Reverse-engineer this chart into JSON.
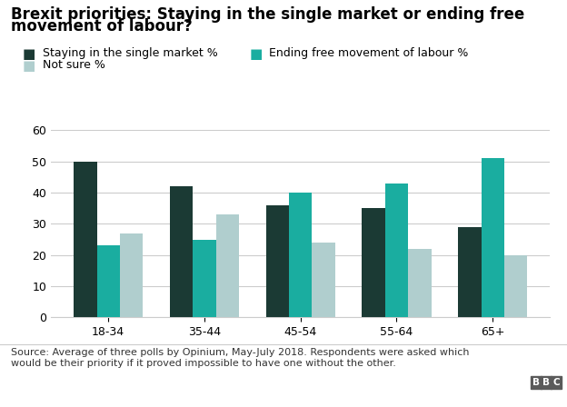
{
  "title_line1": "Brexit priorities: Staying in the single market or ending free",
  "title_line2": "movement of labour?",
  "categories": [
    "18-34",
    "35-44",
    "45-54",
    "55-64",
    "65+"
  ],
  "series": {
    "single_market": [
      50,
      42,
      36,
      35,
      29
    ],
    "free_movement": [
      23,
      25,
      40,
      43,
      51
    ],
    "not_sure": [
      27,
      33,
      24,
      22,
      20
    ]
  },
  "colors": {
    "single_market": "#1b3a34",
    "free_movement": "#1aada0",
    "not_sure": "#b0cece"
  },
  "legend_labels": [
    "Staying in the single market %",
    "Ending free movement of labour %",
    "Not sure %"
  ],
  "ylim": [
    0,
    60
  ],
  "yticks": [
    0,
    10,
    20,
    30,
    40,
    50,
    60
  ],
  "source_text": "Source: Average of three polls by Opinium, May-July 2018. Respondents were asked which\nwould be their priority if it proved impossible to have one without the other.",
  "background_color": "#ffffff",
  "title_fontsize": 12,
  "legend_fontsize": 9,
  "tick_fontsize": 9,
  "source_fontsize": 8,
  "bar_width": 0.24,
  "grid_color": "#cccccc"
}
